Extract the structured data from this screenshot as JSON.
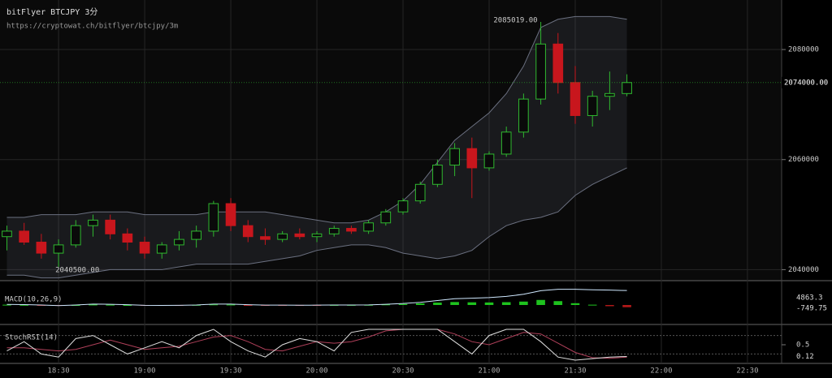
{
  "chart_data": {
    "type": "candlestick",
    "title": "bitFlyer BTCJPY 3分",
    "subtitle": "https://cryptowat.ch/bitflyer/btcjpy/3m",
    "x": [
      1092,
      1098,
      1104,
      1110,
      1116,
      1122,
      1128,
      1134,
      1140,
      1146,
      1152,
      1158,
      1164,
      1170,
      1176,
      1182,
      1188,
      1194,
      1200,
      1206,
      1212,
      1218,
      1224,
      1230,
      1236,
      1242,
      1248,
      1254,
      1260,
      1266,
      1272,
      1278,
      1284,
      1290,
      1296,
      1302,
      1308
    ],
    "xlim": [
      1089.6,
      1361.9
    ],
    "xticks": [
      {
        "value": 1110,
        "label": "18:30"
      },
      {
        "value": 1140,
        "label": "19:00"
      },
      {
        "value": 1170,
        "label": "19:30"
      },
      {
        "value": 1200,
        "label": "20:00"
      },
      {
        "value": 1230,
        "label": "20:30"
      },
      {
        "value": 1260,
        "label": "21:00"
      },
      {
        "value": 1290,
        "label": "21:30"
      },
      {
        "value": 1320,
        "label": "22:00"
      },
      {
        "value": 1350,
        "label": "22:30"
      }
    ],
    "open": [
      2046000,
      2047000,
      2045000,
      2043000,
      2044500,
      2048000,
      2049000,
      2046500,
      2045000,
      2043000,
      2044500,
      2045500,
      2047000,
      2052000,
      2048000,
      2046000,
      2045500,
      2046500,
      2046000,
      2046500,
      2047500,
      2047000,
      2048500,
      2050500,
      2052500,
      2055500,
      2059000,
      2062000,
      2058500,
      2061000,
      2065000,
      2071000,
      2081000,
      2074000,
      2068000,
      2071500,
      2072000
    ],
    "high": [
      2048000,
      2048500,
      2046500,
      2045500,
      2049000,
      2050000,
      2050000,
      2047500,
      2046000,
      2045000,
      2047000,
      2048000,
      2052500,
      2053000,
      2049000,
      2047500,
      2047000,
      2047500,
      2047000,
      2048000,
      2048000,
      2049000,
      2051000,
      2053000,
      2056000,
      2060000,
      2063000,
      2064000,
      2061500,
      2066000,
      2072000,
      2085019,
      2083000,
      2077000,
      2072500,
      2076000,
      2075500
    ],
    "low": [
      2043500,
      2044500,
      2042000,
      2040500,
      2044000,
      2046000,
      2045500,
      2043500,
      2042000,
      2042000,
      2043500,
      2044000,
      2046000,
      2047000,
      2045000,
      2044500,
      2045000,
      2045500,
      2045000,
      2046000,
      2046500,
      2046500,
      2048000,
      2050000,
      2052000,
      2055000,
      2057000,
      2053000,
      2058000,
      2060500,
      2064000,
      2070000,
      2072000,
      2066500,
      2066000,
      2069000,
      2071500
    ],
    "close": [
      2047000,
      2045000,
      2043000,
      2044500,
      2048000,
      2049000,
      2046500,
      2045000,
      2043000,
      2044500,
      2045500,
      2047000,
      2052000,
      2048000,
      2046000,
      2045500,
      2046500,
      2046000,
      2046500,
      2047500,
      2047000,
      2048500,
      2050500,
      2052500,
      2055500,
      2059000,
      2062000,
      2058500,
      2061000,
      2065000,
      2071000,
      2081000,
      2074000,
      2068000,
      2071500,
      2072000,
      2074000
    ],
    "up_color": "#2fb82f",
    "down_color": "#c8161d",
    "ylim": [
      2038000,
      2089000
    ],
    "yticks": [
      2040000,
      2060000,
      2080000
    ],
    "grid": true,
    "last_price": {
      "value": 2074000,
      "label": "2074000.00"
    },
    "max_price": {
      "value": 2085019,
      "label": "2085019.00"
    },
    "min_price": {
      "value": 2040500,
      "label": "2040500.00"
    },
    "bands": {
      "upper": [
        2049500,
        2049500,
        2050000,
        2050000,
        2050000,
        2050500,
        2050500,
        2050500,
        2050000,
        2050000,
        2050000,
        2050000,
        2050500,
        2050500,
        2050500,
        2050500,
        2050000,
        2049500,
        2049000,
        2048500,
        2048500,
        2049000,
        2050500,
        2052500,
        2055500,
        2059500,
        2063500,
        2066000,
        2068500,
        2072000,
        2077000,
        2084000,
        2085500,
        2086000,
        2086000,
        2086000,
        2085500
      ],
      "lower": [
        2039000,
        2039000,
        2038500,
        2038500,
        2039000,
        2039500,
        2040000,
        2040000,
        2040000,
        2040000,
        2040500,
        2041000,
        2041000,
        2041000,
        2041000,
        2041500,
        2042000,
        2042500,
        2043500,
        2044000,
        2044500,
        2044500,
        2044000,
        2043000,
        2042500,
        2042000,
        2042500,
        2043500,
        2046000,
        2048000,
        2049000,
        2049500,
        2050500,
        2053500,
        2055500,
        2057000,
        2058500
      ]
    },
    "macd": {
      "title": "MACD(10,26,9)",
      "ylim": [
        -6000,
        6000
      ],
      "line": [
        200,
        150,
        0,
        -200,
        0,
        300,
        250,
        100,
        -100,
        -150,
        -100,
        0,
        300,
        300,
        100,
        -50,
        -50,
        -80,
        -50,
        0,
        0,
        50,
        250,
        500,
        900,
        1500,
        2100,
        2300,
        2500,
        2900,
        3600,
        4800,
        5300,
        5300,
        5100,
        5000,
        4863.3
      ],
      "histogram": [
        100,
        50,
        -50,
        -150,
        0,
        150,
        100,
        0,
        -100,
        -100,
        -50,
        50,
        200,
        150,
        -50,
        -150,
        -100,
        -80,
        -40,
        20,
        30,
        60,
        200,
        350,
        550,
        800,
        1000,
        900,
        850,
        950,
        1150,
        1700,
        1300,
        600,
        100,
        -400,
        -749.75
      ],
      "line_label": "4863.3",
      "histogram_label": "-749.75"
    },
    "stoch_rsi": {
      "title": "StochRSI(14)",
      "ylim": [
        0,
        1
      ],
      "yticks": [
        0.5
      ],
      "levels": [
        0.2,
        0.8
      ],
      "k": [
        0.3,
        0.6,
        0.2,
        0.1,
        0.7,
        0.8,
        0.5,
        0.2,
        0.4,
        0.6,
        0.4,
        0.8,
        1,
        0.6,
        0.3,
        0.1,
        0.5,
        0.7,
        0.6,
        0.3,
        0.9,
        1,
        1,
        1,
        1,
        1,
        0.6,
        0.2,
        0.8,
        1,
        1,
        0.6,
        0.1,
        0,
        0.05,
        0.1,
        0.12
      ],
      "d": [
        0.4,
        0.4,
        0.35,
        0.3,
        0.35,
        0.5,
        0.65,
        0.5,
        0.35,
        0.4,
        0.45,
        0.6,
        0.75,
        0.8,
        0.6,
        0.35,
        0.3,
        0.45,
        0.6,
        0.55,
        0.6,
        0.75,
        0.95,
        1,
        1,
        1,
        0.85,
        0.6,
        0.5,
        0.7,
        0.9,
        0.85,
        0.55,
        0.25,
        0.08,
        0.06,
        0.1
      ],
      "k_label": "0.12"
    }
  }
}
